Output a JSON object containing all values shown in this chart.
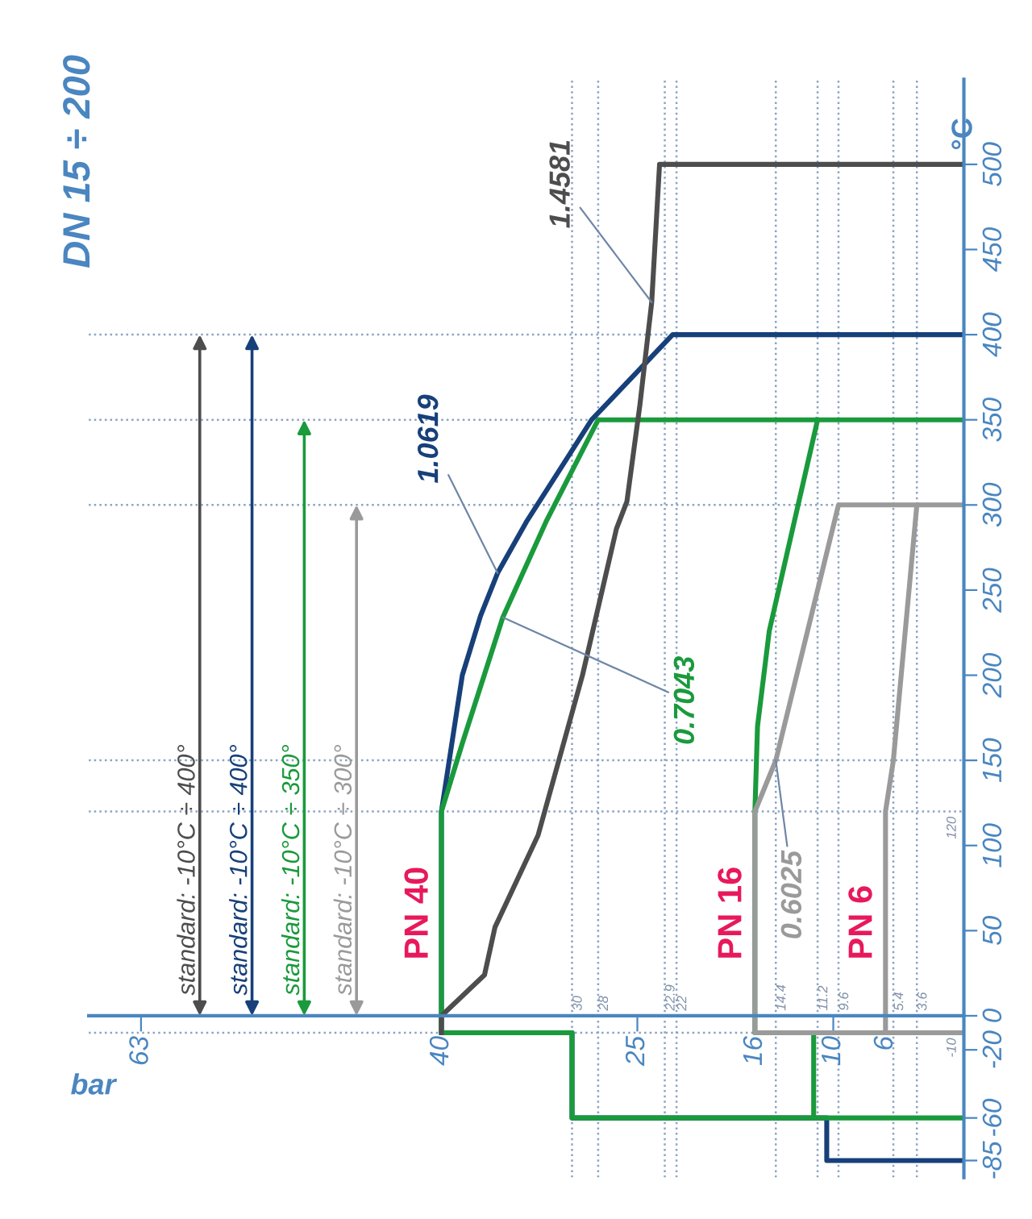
{
  "chart_data": {
    "type": "line",
    "title": "DN 15 ÷ 200",
    "xlabel": "bar",
    "ylabel": "°C",
    "xlim": [
      67,
      0
    ],
    "xticks": [
      63,
      40,
      25,
      16,
      10,
      6
    ],
    "ylim": [
      -95,
      550
    ],
    "yticks": [
      -85,
      -60,
      -20,
      0,
      50,
      100,
      150,
      200,
      250,
      300,
      350,
      400,
      450,
      500
    ],
    "series": [
      {
        "name": "1.0619",
        "color": "#17407a",
        "x": [
          0,
          10.5,
          10.5,
          30,
          30,
          40,
          40,
          39,
          38.4,
          37,
          35.7,
          33.5,
          31,
          28.5,
          22.3,
          0
        ],
        "values": [
          -85,
          -85,
          -60,
          -60,
          -10,
          -10,
          120,
          170,
          200,
          235,
          260,
          290,
          320,
          350,
          400,
          400
        ]
      },
      {
        "name": "0.7043",
        "color": "#1a9a3c",
        "x": [
          11.5,
          30,
          30,
          40,
          40,
          38.4,
          35.3,
          32,
          28,
          0
        ],
        "values": [
          -60,
          -60,
          -10,
          -10,
          120,
          160,
          234,
          290,
          350,
          350
        ]
      },
      {
        "color": "#1a9a3c",
        "x": [
          0,
          11.5,
          11.5,
          16,
          16,
          15.8,
          14.9,
          11.2
        ],
        "values": [
          -60,
          -60,
          -10,
          -10,
          120,
          170,
          226,
          350
        ]
      },
      {
        "name": "1.4581",
        "color": "#4d4d4d",
        "x": [
          40,
          40,
          36.7,
          35.9,
          32.6,
          29.2,
          26.6,
          25.8,
          24.8,
          23.9,
          23.3,
          0
        ],
        "values": [
          -10,
          0,
          24,
          52,
          106,
          200,
          286,
          302,
          359,
          419,
          500,
          500
        ]
      },
      {
        "name": "0.6025",
        "color": "#9a9a9a",
        "x": [
          0,
          16,
          16,
          14.4,
          9.6,
          3.6
        ],
        "values": [
          -10,
          -10,
          120,
          150,
          300,
          300
        ]
      },
      {
        "color": "#9a9a9a",
        "x": [
          6,
          6,
          5.4,
          3.6,
          0
        ],
        "values": [
          -10,
          120,
          150,
          300,
          300
        ]
      }
    ],
    "annotations": [
      {
        "text": "PN 40",
        "x": 40,
        "y": 0
      },
      {
        "text": "PN 16",
        "x": 16,
        "y": 0
      },
      {
        "text": "PN 6",
        "x": 6,
        "y": 0
      },
      {
        "text": "standard: -10°C ÷ 400°",
        "x": 58.5,
        "y": 400
      },
      {
        "text": "standard: -10°C ÷ 400°",
        "x": 54.5,
        "y": 400
      },
      {
        "text": "standard: -10°C ÷ 350°",
        "x": 50.5,
        "y": 350
      },
      {
        "text": "standard: -10°C ÷ 300°",
        "x": 46.5,
        "y": 300
      }
    ],
    "ref_lines": [
      {
        "axis": "y",
        "value": -10,
        "label": "-10"
      },
      {
        "axis": "y",
        "value": 120,
        "label": "120"
      },
      {
        "axis": "y",
        "value": 150,
        "label": null
      },
      {
        "axis": "y",
        "value": 300,
        "label": null
      },
      {
        "axis": "y",
        "value": 350,
        "label": null
      },
      {
        "axis": "y",
        "value": 400,
        "label": null
      },
      {
        "axis": "x",
        "value": 30,
        "label": "30"
      },
      {
        "axis": "x",
        "value": 28,
        "label": "28"
      },
      {
        "axis": "x",
        "value": 22.9,
        "label": "22.9"
      },
      {
        "axis": "x",
        "value": 22,
        "label": "22"
      },
      {
        "axis": "x",
        "value": 14.4,
        "label": "14.4"
      },
      {
        "axis": "x",
        "value": 11.2,
        "label": "11.2"
      },
      {
        "axis": "x",
        "value": 9.6,
        "label": "9.6"
      },
      {
        "axis": "x",
        "value": 5.4,
        "label": "5.4"
      },
      {
        "axis": "x",
        "value": 3.6,
        "label": "3.6"
      }
    ]
  }
}
